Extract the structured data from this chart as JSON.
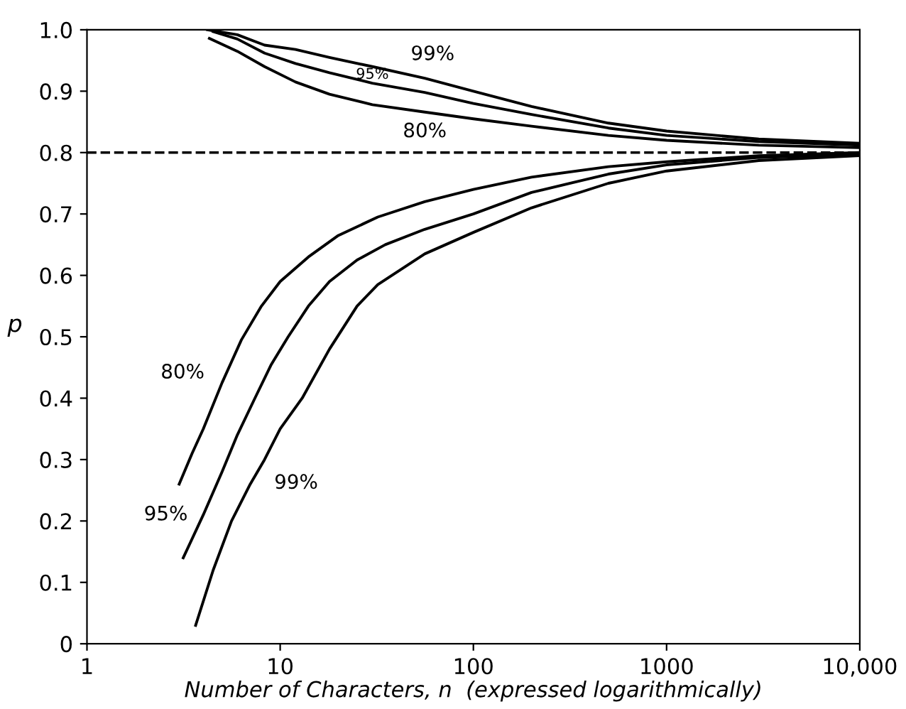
{
  "chart_data": {
    "type": "line",
    "xlabel": "Number of Characters, n  (expressed logarithmically)",
    "ylabel": "p",
    "log": "x",
    "xlim": [
      1,
      10000
    ],
    "ylim": [
      0,
      1.0
    ],
    "xticks": [
      1,
      10,
      100,
      1000,
      {
        "value": 10000,
        "label": "10,000"
      }
    ],
    "yticks": [
      0,
      0.1,
      0.2,
      0.3,
      0.4,
      0.5,
      0.6,
      0.7,
      0.8,
      0.9,
      {
        "value": 1.0,
        "label": "1.0"
      }
    ],
    "grid": false,
    "marker": "none",
    "line_style": "solid",
    "series": [
      {
        "name": "99%",
        "color": "#000000",
        "x": [
          4.2,
          6,
          8.3,
          12,
          18,
          30,
          56,
          100,
          200,
          500,
          1000,
          3000,
          10000
        ],
        "values": [
          1.0,
          0.992,
          0.975,
          0.968,
          0.955,
          0.94,
          0.921,
          0.9,
          0.875,
          0.848,
          0.835,
          0.822,
          0.815
        ]
      },
      {
        "name": "95%",
        "color": "#000000",
        "x": [
          4.5,
          6,
          8.3,
          12,
          18,
          30,
          56,
          100,
          200,
          500,
          1000,
          3000,
          10000
        ],
        "values": [
          0.997,
          0.985,
          0.962,
          0.945,
          0.93,
          0.913,
          0.898,
          0.88,
          0.862,
          0.84,
          0.828,
          0.818,
          0.812
        ]
      },
      {
        "name": "80%",
        "color": "#000000",
        "x": [
          4.3,
          6,
          8.3,
          12,
          18,
          30,
          56,
          100,
          200,
          500,
          1000,
          3000,
          10000
        ],
        "values": [
          0.986,
          0.965,
          0.94,
          0.915,
          0.895,
          0.878,
          0.866,
          0.855,
          0.843,
          0.828,
          0.82,
          0.812,
          0.808
        ]
      },
      {
        "name": "80%",
        "color": "#000000",
        "x": [
          3.0,
          3.5,
          4,
          5,
          6.3,
          8,
          10,
          14,
          20,
          32,
          56,
          100,
          200,
          500,
          1000,
          3000,
          10000
        ],
        "values": [
          0.26,
          0.31,
          0.35,
          0.425,
          0.495,
          0.55,
          0.59,
          0.63,
          0.665,
          0.695,
          0.72,
          0.74,
          0.76,
          0.777,
          0.785,
          0.795,
          0.8
        ]
      },
      {
        "name": "95%",
        "color": "#000000",
        "x": [
          3.15,
          4,
          5,
          6,
          7.4,
          9,
          11,
          14,
          18,
          25,
          35,
          56,
          100,
          200,
          500,
          1000,
          3000,
          10000
        ],
        "values": [
          0.14,
          0.21,
          0.28,
          0.34,
          0.4,
          0.455,
          0.5,
          0.55,
          0.59,
          0.625,
          0.65,
          0.675,
          0.7,
          0.735,
          0.765,
          0.78,
          0.792,
          0.797
        ]
      },
      {
        "name": "99%",
        "color": "#000000",
        "x": [
          3.65,
          4.5,
          5.6,
          7,
          8.3,
          10,
          13,
          18,
          25,
          32,
          56,
          100,
          200,
          500,
          1000,
          3000,
          10000
        ],
        "values": [
          0.03,
          0.12,
          0.2,
          0.26,
          0.3,
          0.35,
          0.4,
          0.48,
          0.55,
          0.585,
          0.635,
          0.67,
          0.71,
          0.75,
          0.77,
          0.787,
          0.795
        ]
      }
    ],
    "ref_lines": [
      {
        "axis": "y",
        "value": 0.8,
        "line_style": "dashed",
        "color": "#000000"
      }
    ]
  }
}
